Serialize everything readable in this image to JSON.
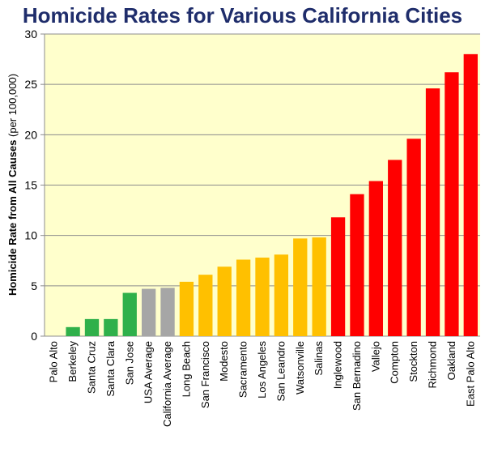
{
  "chart_data": {
    "type": "bar",
    "title": "Homicide Rates for Various California Cities",
    "ylabel": "Homicide Rate from All Causes",
    "ylabel_unit": "(per 100,000)",
    "xlabel": "",
    "ylim": [
      0,
      30
    ],
    "yticks": [
      "0",
      "5",
      "10",
      "15",
      "20",
      "25",
      "30"
    ],
    "grid": "horizontal",
    "plot_background": "#ffffcc",
    "categories": [
      "Palo Alto",
      "Berkeley",
      "Santa Cruz",
      "Santa Clara",
      "San Jose",
      "USA Average",
      "California Average",
      "Long Beach",
      "San Francisco",
      "Modesto",
      "Sacramento",
      "Los Angeles",
      "San Leandro",
      "Watsonville",
      "Salinas",
      "Inglewood",
      "San Bernadino",
      "Vallejo",
      "Compton",
      "Stockton",
      "Richmond",
      "Oakland",
      "East Palo Alto"
    ],
    "values": [
      0,
      0.9,
      1.7,
      1.7,
      4.3,
      4.7,
      4.8,
      5.4,
      6.1,
      6.9,
      7.6,
      7.8,
      8.1,
      9.7,
      9.8,
      11.8,
      14.1,
      15.4,
      17.5,
      19.6,
      24.6,
      26.2,
      28.0
    ],
    "colors": [
      "#2fb04a",
      "#2fb04a",
      "#2fb04a",
      "#2fb04a",
      "#2fb04a",
      "#a6a6a6",
      "#a6a6a6",
      "#ffc000",
      "#ffc000",
      "#ffc000",
      "#ffc000",
      "#ffc000",
      "#ffc000",
      "#ffc000",
      "#ffc000",
      "#ff0000",
      "#ff0000",
      "#ff0000",
      "#ff0000",
      "#ff0000",
      "#ff0000",
      "#ff0000",
      "#ff0000"
    ]
  }
}
